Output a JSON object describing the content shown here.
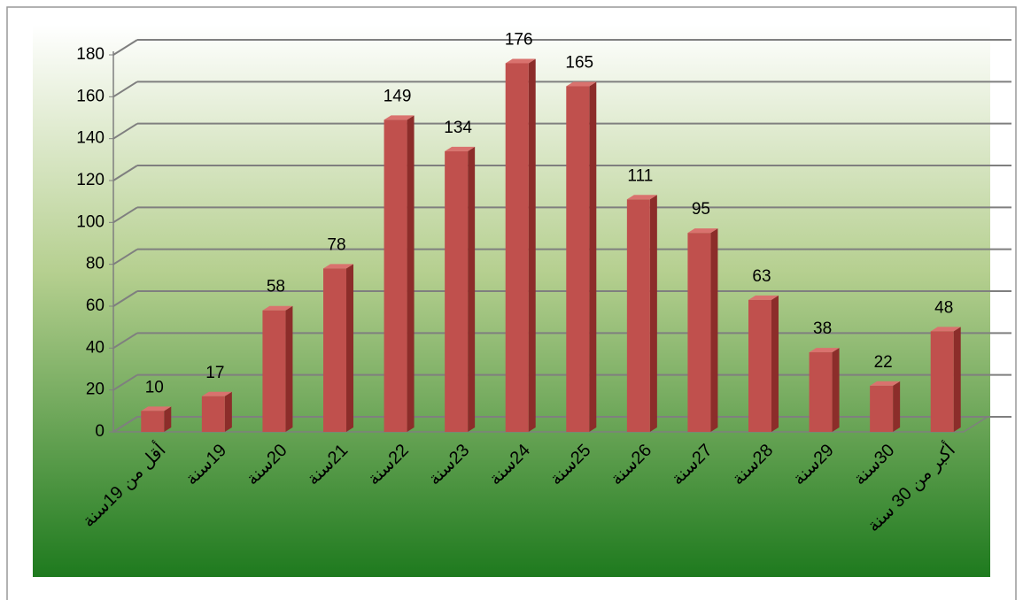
{
  "chart_data": {
    "type": "bar3d",
    "categories": [
      "أقل من 19سنة",
      "19سنة",
      "20سنة",
      "21سنة",
      "22سنة",
      "23سنة",
      "24سنة",
      "25سنة",
      "26سنة",
      "27سنة",
      "28سنة",
      "29سنة",
      "30سنة",
      "أكبر من 30 سنة"
    ],
    "values": [
      10,
      17,
      58,
      78,
      149,
      134,
      176,
      165,
      111,
      95,
      63,
      38,
      22,
      48
    ],
    "color": "#c0504d",
    "ylim": [
      0,
      180
    ],
    "yticks": [
      0,
      20,
      40,
      60,
      80,
      100,
      120,
      140,
      160,
      180
    ],
    "grid": true
  }
}
